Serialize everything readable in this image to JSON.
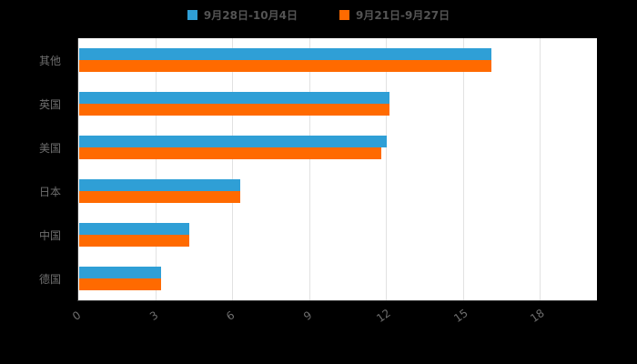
{
  "page": {
    "background": "#000000"
  },
  "legend": {
    "items": [
      {
        "label": "9月28日-10月4日",
        "color": "#2F9FD6"
      },
      {
        "label": "9月21日-9月27日",
        "color": "#FF6A00"
      }
    ]
  },
  "chart_data": {
    "type": "bar",
    "orientation": "horizontal",
    "title": "",
    "xlabel": "",
    "ylabel": "",
    "categories": [
      "其他",
      "英国",
      "美国",
      "日本",
      "中国",
      "德国"
    ],
    "series": [
      {
        "name": "9月28日-10月4日",
        "color": "#2F9FD6",
        "values": [
          16.1,
          12.1,
          12.0,
          6.3,
          4.3,
          3.2
        ]
      },
      {
        "name": "9月21日-9月27日",
        "color": "#FF6A00",
        "values": [
          16.1,
          12.1,
          11.8,
          6.3,
          4.3,
          3.2
        ]
      }
    ],
    "xlim": [
      0,
      18
    ],
    "xticks": [
      0,
      3,
      6,
      9,
      12,
      15,
      18
    ],
    "grid": true,
    "legend_position": "top"
  }
}
